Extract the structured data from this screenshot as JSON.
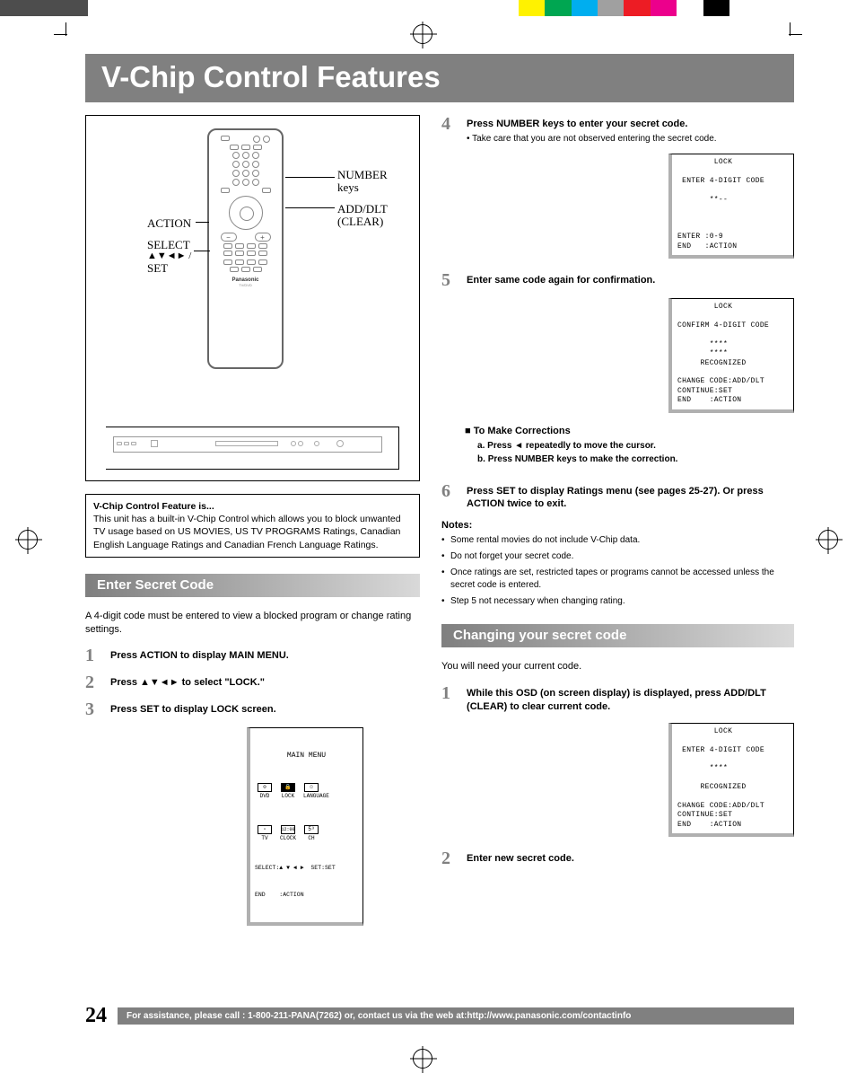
{
  "colorbar": [
    "#4d4d4d",
    "#4d4d4d",
    "#ffffff",
    "#ffffff",
    "#ffffff",
    "#ffffff",
    "#ffffff",
    "#ffffff",
    "#fff200",
    "#00a651",
    "#00aeef",
    "#a0a0a0",
    "#ed1c24",
    "#ec008c",
    "#ffffff",
    "#000000",
    "#ffffff",
    "#ffffff"
  ],
  "colorbar_widths": [
    50,
    50,
    260,
    50,
    20,
    20,
    50,
    90,
    30,
    30,
    30,
    30,
    30,
    30,
    30,
    30,
    30,
    114
  ],
  "title": "V-Chip Control Features",
  "remote_labels": {
    "action": "ACTION",
    "select": "SELECT",
    "arrows": "▲▼◄► /",
    "set": "SET",
    "number": "NUMBER",
    "keys": "keys",
    "adddlt": "ADD/DLT",
    "clear": "(CLEAR)"
  },
  "remote_brand": "Panasonic",
  "remote_model": "TV/DVD",
  "info": {
    "lead": "V-Chip Control Feature is...",
    "body": "This unit has a built-in V-Chip Control which allows you to block unwanted TV usage based on US MOVIES, US TV PROGRAMS Ratings, Canadian English Language Ratings and Canadian French Language Ratings."
  },
  "section1": {
    "heading": "Enter Secret Code",
    "intro": "A 4-digit code must be entered to view a blocked program or change rating settings.",
    "steps": {
      "s1": "Press ACTION to display MAIN MENU.",
      "s2": "Press ▲▼◄► to select \"LOCK.\"",
      "s3": "Press SET to display LOCK screen."
    }
  },
  "mainmenu_osd": {
    "title": "MAIN MENU",
    "row1": [
      "DVD",
      "LOCK",
      "LANGUAGE"
    ],
    "row2": [
      "TV",
      "CLOCK",
      "CH"
    ],
    "footer1": "SELECT:▲ ▼ ◄ ►  SET:SET",
    "footer2": "END    :ACTION"
  },
  "right_steps": {
    "s4": {
      "title": "Press NUMBER keys to enter your secret code.",
      "sub": "• Take care that you are not observed entering the secret code."
    },
    "osd4": "        LOCK\n\n ENTER 4-DIGIT CODE\n\n       **--\n\n\n\nENTER :0-9\nEND   :ACTION",
    "s5": "Enter same code again for confirmation.",
    "osd5": "        LOCK\n\nCONFIRM 4-DIGIT CODE\n\n       ****\n       ****\n     RECOGNIZED\n\nCHANGE CODE:ADD/DLT\nCONTINUE:SET\nEND    :ACTION",
    "corrections": {
      "heading": "■ To Make Corrections",
      "a": "a. Press ◄ repeatedly to move the cursor.",
      "b": "b. Press NUMBER keys to make the correction."
    },
    "s6": "Press SET to display Ratings menu (see pages 25-27). Or press ACTION twice to exit."
  },
  "notes": {
    "head": "Notes:",
    "items": [
      "Some rental movies do not include V-Chip data.",
      "Do not forget your secret code.",
      "Once ratings are set, restricted tapes or programs cannot be accessed unless the secret code is entered.",
      "Step 5 not necessary when changing rating."
    ]
  },
  "section2": {
    "heading": "Changing your secret code",
    "intro": "You will need your current code.",
    "s1": "While this OSD (on screen display) is displayed, press ADD/DLT (CLEAR) to clear current code.",
    "osd": "        LOCK\n\n ENTER 4-DIGIT CODE\n\n       ****\n\n     RECOGNIZED\n\nCHANGE CODE:ADD/DLT\nCONTINUE:SET\nEND    :ACTION",
    "s2": "Enter new secret code."
  },
  "footer": {
    "page": "24",
    "text": "For assistance, please call : 1-800-211-PANA(7262) or, contact us via the web at:http://www.panasonic.com/contactinfo"
  }
}
